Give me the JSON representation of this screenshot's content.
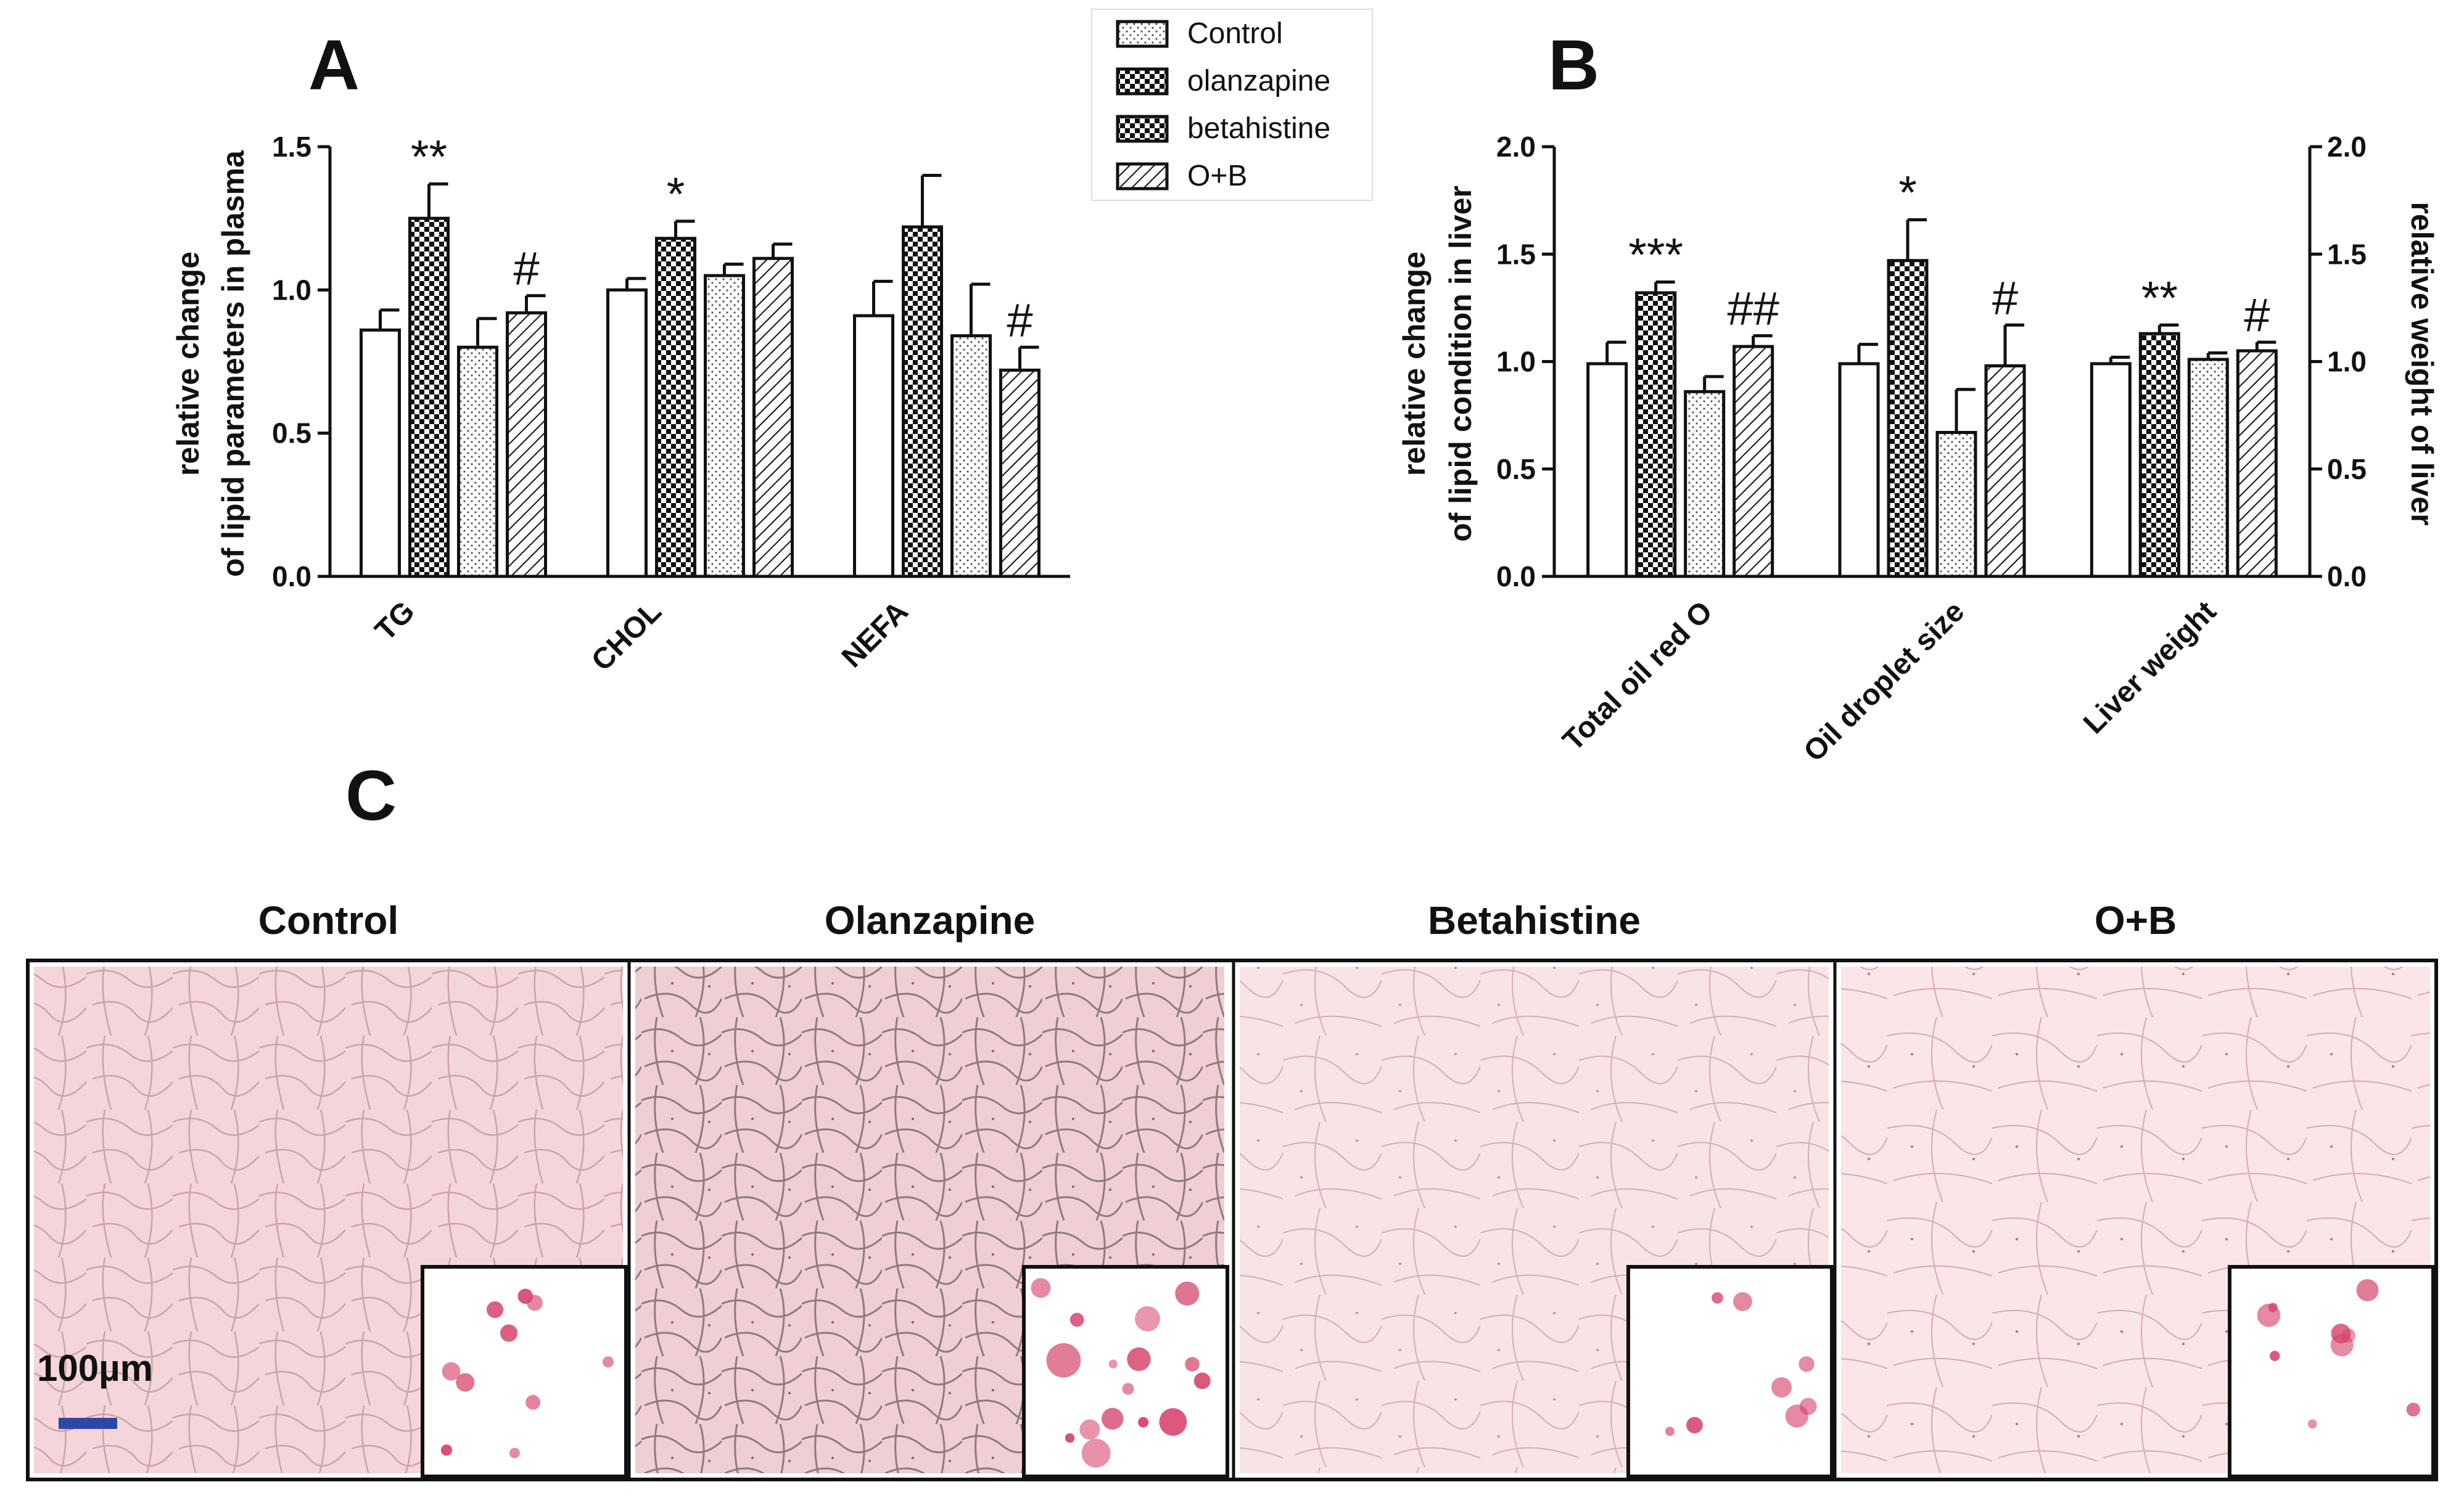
{
  "panels": {
    "a": "A",
    "b": "B",
    "c": "C"
  },
  "legend": [
    "Control",
    "olanzapine",
    "betahistine",
    "O+B"
  ],
  "series_patterns": [
    "white",
    "checker",
    "dots",
    "hatch"
  ],
  "chart_data": [
    {
      "type": "bar",
      "panel": "A",
      "categories": [
        "TG",
        "CHOL",
        "NEFA"
      ],
      "ylabel_line1": "relative change",
      "ylabel_line2": "of lipid parameters in plasma",
      "ylim": [
        0,
        1.5
      ],
      "yticks": [
        "0.0",
        "0.5",
        "1.0",
        "1.5"
      ],
      "series": [
        {
          "name": "Control",
          "values": [
            0.86,
            1.0,
            0.91
          ],
          "errors": [
            0.07,
            0.04,
            0.12
          ]
        },
        {
          "name": "olanzapine",
          "values": [
            1.25,
            1.18,
            1.22
          ],
          "errors": [
            0.12,
            0.06,
            0.18
          ]
        },
        {
          "name": "betahistine",
          "values": [
            0.8,
            1.05,
            0.84
          ],
          "errors": [
            0.1,
            0.04,
            0.18
          ]
        },
        {
          "name": "O+B",
          "values": [
            0.92,
            1.11,
            0.72
          ],
          "errors": [
            0.06,
            0.05,
            0.08
          ]
        }
      ],
      "annotations": [
        {
          "category": 0,
          "series": 1,
          "text": "**"
        },
        {
          "category": 0,
          "series": 3,
          "text": "#"
        },
        {
          "category": 1,
          "series": 1,
          "text": "*"
        },
        {
          "category": 2,
          "series": 3,
          "text": "#"
        }
      ]
    },
    {
      "type": "bar",
      "panel": "B",
      "categories": [
        "Total oil red O",
        "Oil droplet size",
        "Liver weight"
      ],
      "ylabel_line1": "relative change",
      "ylabel_line2": "of lipid condition in liver",
      "ylabel_right": "relative weight of liver",
      "ylim": [
        0,
        2.0
      ],
      "yticks": [
        "0.0",
        "0.5",
        "1.0",
        "1.5",
        "2.0"
      ],
      "yticks_right": [
        "0.0",
        "0.5",
        "1.0",
        "1.5",
        "2.0"
      ],
      "series": [
        {
          "name": "Control",
          "values": [
            0.99,
            0.99,
            0.99
          ],
          "errors": [
            0.1,
            0.09,
            0.03
          ]
        },
        {
          "name": "olanzapine",
          "values": [
            1.32,
            1.47,
            1.13
          ],
          "errors": [
            0.05,
            0.19,
            0.04
          ]
        },
        {
          "name": "betahistine",
          "values": [
            0.86,
            0.67,
            1.01
          ],
          "errors": [
            0.07,
            0.2,
            0.03
          ]
        },
        {
          "name": "O+B",
          "values": [
            1.07,
            0.98,
            1.05
          ],
          "errors": [
            0.05,
            0.19,
            0.04
          ]
        }
      ],
      "annotations": [
        {
          "category": 0,
          "series": 1,
          "text": "***"
        },
        {
          "category": 0,
          "series": 3,
          "text": "##"
        },
        {
          "category": 1,
          "series": 1,
          "text": "*"
        },
        {
          "category": 1,
          "series": 3,
          "text": "#"
        },
        {
          "category": 2,
          "series": 1,
          "text": "**"
        },
        {
          "category": 2,
          "series": 3,
          "text": "#"
        }
      ]
    }
  ],
  "micrographs": {
    "titles": [
      "Control",
      "Olanzapine",
      "Betahistine",
      "O+B"
    ],
    "scale_bar_label": "100µm",
    "tissue_color": "#f3d2d6",
    "droplet_color": "#d6456c",
    "scale_bar_color": "#2a48a8",
    "droplet_density": [
      10,
      16,
      8,
      9
    ]
  }
}
